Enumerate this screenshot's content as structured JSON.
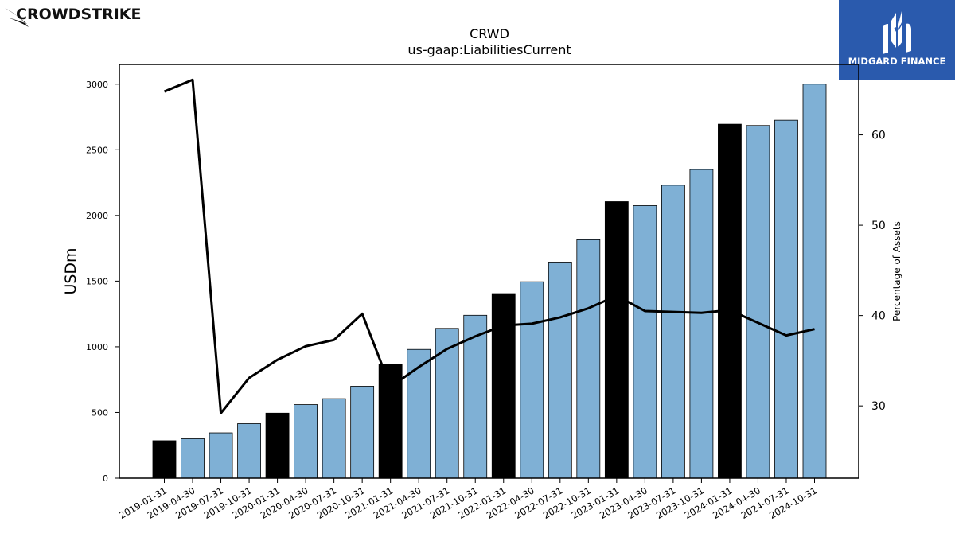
{
  "brand_left": {
    "name": "CROWDSTRIKE"
  },
  "brand_right": {
    "name": "MIDGARD FINANCE",
    "bg_color": "#2a5aad"
  },
  "chart_data": {
    "type": "bar",
    "title": "CRWD",
    "subtitle": "us-gaap:LiabilitiesCurrent",
    "ylabel": "USDm",
    "y2label": "Percentage of Assets",
    "ylim": [
      0,
      3150
    ],
    "yticks": [
      0,
      500,
      1000,
      1500,
      2000,
      2500,
      3000
    ],
    "y2lim": [
      22,
      67.8
    ],
    "y2ticks": [
      30,
      40,
      50,
      60
    ],
    "categories": [
      "2019-01-31",
      "2019-04-30",
      "2019-07-31",
      "2019-10-31",
      "2020-01-31",
      "2020-04-30",
      "2020-07-31",
      "2020-10-31",
      "2021-01-31",
      "2021-04-30",
      "2021-07-31",
      "2021-10-31",
      "2022-01-31",
      "2022-04-30",
      "2022-07-31",
      "2022-10-31",
      "2023-01-31",
      "2023-04-30",
      "2023-07-31",
      "2023-10-31",
      "2024-01-31",
      "2024-04-30",
      "2024-07-31",
      "2024-10-31"
    ],
    "series": [
      {
        "kind": "bar",
        "axis": "left",
        "values": [
          285,
          300,
          345,
          415,
          495,
          560,
          605,
          700,
          865,
          980,
          1140,
          1240,
          1405,
          1495,
          1645,
          1815,
          2105,
          2075,
          2230,
          2350,
          2695,
          2685,
          2725,
          3000
        ],
        "highlight_every": 4,
        "color": "#7fb0d5",
        "highlight_color": "#000000"
      },
      {
        "kind": "line",
        "axis": "right",
        "values": [
          64.8,
          66.1,
          29.2,
          33.1,
          35.1,
          36.6,
          37.3,
          40.2,
          32.1,
          34.3,
          36.3,
          37.7,
          38.9,
          39.1,
          39.8,
          40.8,
          42.2,
          40.5,
          40.4,
          40.3,
          40.6,
          39.2,
          37.8,
          38.5
        ],
        "color": "#000000"
      }
    ],
    "grid": false,
    "legend": "none"
  }
}
